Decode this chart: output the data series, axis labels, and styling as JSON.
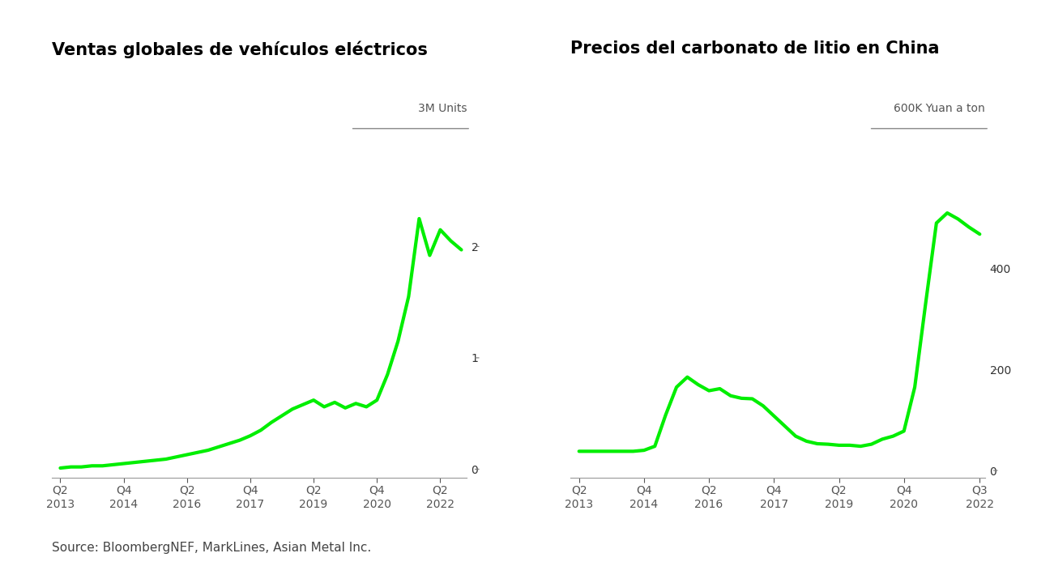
{
  "title1": "Ventas globales de vehículos eléctricos",
  "title2": "Precios del carbonato de litio en China",
  "source": "Source: BloombergNEF, MarkLines, Asian Metal Inc.",
  "chart1": {
    "ylabel": "3M Units",
    "yticks": [
      0,
      1,
      2
    ],
    "ylim": [
      -0.08,
      2.8
    ],
    "xtick_positions": [
      0,
      6,
      12,
      18,
      24,
      30,
      36
    ],
    "xtick_labels": [
      "Q2\n2013",
      "Q4\n2014",
      "Q2\n2016",
      "Q4\n2017",
      "Q2\n2019",
      "Q4\n2020",
      "Q2\n2022"
    ],
    "x": [
      0,
      1,
      2,
      3,
      4,
      5,
      6,
      7,
      8,
      9,
      10,
      11,
      12,
      13,
      14,
      15,
      16,
      17,
      18,
      19,
      20,
      21,
      22,
      23,
      24,
      25,
      26,
      27,
      28,
      29,
      30,
      31,
      32,
      33,
      34,
      35,
      36,
      37,
      38
    ],
    "y": [
      0.01,
      0.02,
      0.02,
      0.03,
      0.03,
      0.04,
      0.05,
      0.06,
      0.07,
      0.08,
      0.09,
      0.11,
      0.13,
      0.15,
      0.17,
      0.2,
      0.23,
      0.26,
      0.3,
      0.35,
      0.42,
      0.48,
      0.54,
      0.58,
      0.62,
      0.56,
      0.6,
      0.55,
      0.59,
      0.56,
      0.62,
      0.85,
      1.15,
      1.55,
      2.25,
      1.92,
      2.15,
      2.05,
      1.97
    ]
  },
  "chart2": {
    "ylabel": "600K Yuan a ton",
    "yticks": [
      0,
      200,
      400
    ],
    "ylim": [
      -15,
      620
    ],
    "xtick_positions": [
      0,
      6,
      12,
      18,
      24,
      30,
      37
    ],
    "xtick_labels": [
      "Q2\n2013",
      "Q4\n2014",
      "Q2\n2016",
      "Q4\n2017",
      "Q2\n2019",
      "Q4\n2020",
      "Q3\n2022"
    ],
    "x": [
      0,
      1,
      2,
      3,
      4,
      5,
      6,
      7,
      8,
      9,
      10,
      11,
      12,
      13,
      14,
      15,
      16,
      17,
      18,
      19,
      20,
      21,
      22,
      23,
      24,
      25,
      26,
      27,
      28,
      29,
      30,
      31,
      32,
      33,
      34,
      35,
      36,
      37
    ],
    "y": [
      38,
      38,
      38,
      38,
      38,
      38,
      40,
      48,
      110,
      165,
      185,
      170,
      158,
      162,
      148,
      143,
      142,
      128,
      108,
      88,
      68,
      58,
      53,
      52,
      50,
      50,
      48,
      52,
      62,
      68,
      78,
      165,
      330,
      490,
      510,
      498,
      482,
      468
    ]
  },
  "line_color": "#00EE00",
  "line_width": 3.0,
  "bg_color": "#FFFFFF",
  "title_fontsize": 15,
  "tick_fontsize": 10,
  "ylabel_fontsize": 10,
  "source_fontsize": 11
}
